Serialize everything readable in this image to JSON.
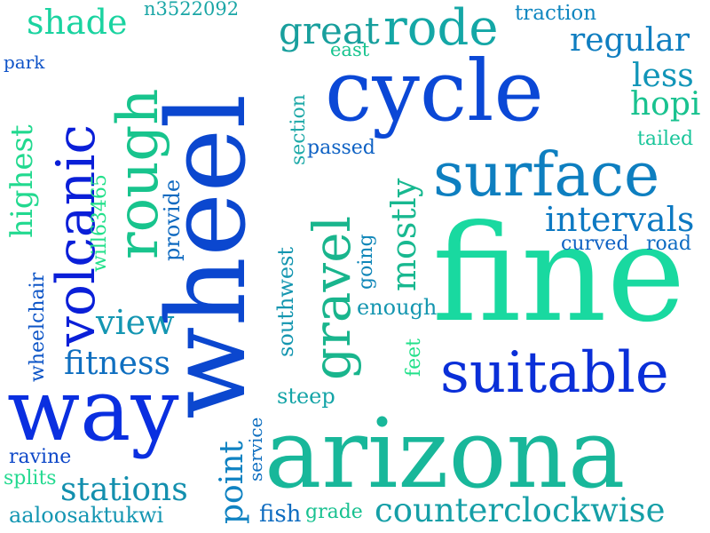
{
  "palette": [
    "#0a2fd6",
    "#0b5fd0",
    "#0b8fc5",
    "#14b5a6",
    "#19d496",
    "#22e08a"
  ],
  "words": [
    {
      "text": "wheel",
      "color": "#0b47cf"
    },
    {
      "text": "fine",
      "color": "#19d9a0"
    },
    {
      "text": "arizona",
      "color": "#18b79a"
    },
    {
      "text": "cycle",
      "color": "#0b48d6"
    },
    {
      "text": "way",
      "color": "#0a2fe0"
    },
    {
      "text": "surface",
      "color": "#0e7fc0"
    },
    {
      "text": "suitable",
      "color": "#0a2fd8"
    },
    {
      "text": "volcanic",
      "color": "#0a1fd8"
    },
    {
      "text": "rough",
      "color": "#18c48d"
    },
    {
      "text": "gravel",
      "color": "#19b58d"
    },
    {
      "text": "rode",
      "color": "#14a7a6"
    },
    {
      "text": "counterclockwise",
      "color": "#159fa7"
    },
    {
      "text": "intervals",
      "color": "#0d79c2"
    },
    {
      "text": "stations",
      "color": "#138fae"
    },
    {
      "text": "fitness",
      "color": "#0f6fc0"
    },
    {
      "text": "view",
      "color": "#1496b2"
    },
    {
      "text": "great",
      "color": "#189f9d"
    },
    {
      "text": "shade",
      "color": "#1ad3a0"
    },
    {
      "text": "regular",
      "color": "#0f7ec0"
    },
    {
      "text": "less",
      "color": "#1195b8"
    },
    {
      "text": "hopi",
      "color": "#19c28f"
    },
    {
      "text": "mostly",
      "color": "#18b890"
    },
    {
      "text": "point",
      "color": "#0f82c2"
    },
    {
      "text": "highest",
      "color": "#22d98f"
    },
    {
      "text": "traction",
      "color": "#0f86c0"
    },
    {
      "text": "n3522092",
      "color": "#1aa6a6"
    },
    {
      "text": "park",
      "color": "#0e53c8"
    },
    {
      "text": "east",
      "color": "#18c48f"
    },
    {
      "text": "tailed",
      "color": "#19c59a"
    },
    {
      "text": "section",
      "color": "#1ea9a8"
    },
    {
      "text": "passed",
      "color": "#0f62c4"
    },
    {
      "text": "will63465",
      "color": "#22e08a"
    },
    {
      "text": "provide",
      "color": "#0f6ac0"
    },
    {
      "text": "curved",
      "color": "#0f62c4"
    },
    {
      "text": "road",
      "color": "#0d6bc2"
    },
    {
      "text": "going",
      "color": "#0f86b8"
    },
    {
      "text": "enough",
      "color": "#1496b0"
    },
    {
      "text": "southwest",
      "color": "#1496b0"
    },
    {
      "text": "wheelchair",
      "color": "#0d55c7"
    },
    {
      "text": "steep",
      "color": "#14a4a7"
    },
    {
      "text": "feet",
      "color": "#22e08a"
    },
    {
      "text": "service",
      "color": "#0f6fc0"
    },
    {
      "text": "ravine",
      "color": "#0d47c8"
    },
    {
      "text": "splits",
      "color": "#22d98f"
    },
    {
      "text": "fish",
      "color": "#0f6cc0"
    },
    {
      "text": "grade",
      "color": "#18c190"
    },
    {
      "text": "aaloosaktukwi",
      "color": "#1496b2"
    }
  ]
}
